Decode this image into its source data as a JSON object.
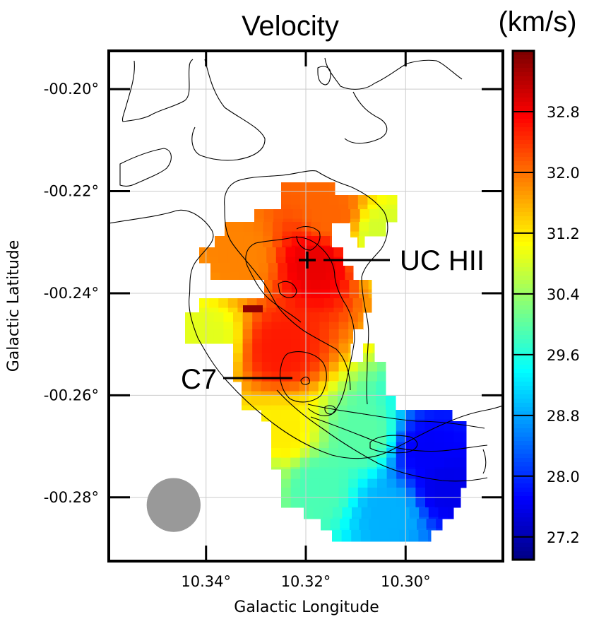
{
  "chart_data": {
    "type": "heatmap",
    "title": "Velocity",
    "colorbar_label": "(km/s)",
    "xlabel": "Galactic Longitude",
    "ylabel": "Galactic Latitude",
    "xlim": [
      10.3595,
      10.2805
    ],
    "ylim": [
      -0.2925,
      -0.1925
    ],
    "x_ticks": [
      10.34,
      10.32,
      10.3
    ],
    "x_tick_labels": [
      "10.34°",
      "10.32°",
      "10.30°"
    ],
    "y_ticks": [
      -0.2,
      -0.22,
      -0.24,
      -0.26,
      -0.28
    ],
    "y_tick_labels": [
      "-00.20°",
      "-00.22°",
      "-00.24°",
      "-00.26°",
      "-00.28°"
    ],
    "colorbar_range": [
      26.9,
      33.6
    ],
    "colorbar_ticks": [
      27.2,
      28.0,
      28.8,
      29.6,
      30.4,
      31.2,
      32.0,
      32.8
    ],
    "colorbar_tick_labels": [
      "27.2",
      "28.0",
      "28.8",
      "29.6",
      "30.4",
      "31.2",
      "32.0",
      "32.8"
    ],
    "colormap": "jet",
    "grid": true,
    "annotations": [
      {
        "text": "UC HII",
        "x": 10.321,
        "y": -0.2335,
        "marker": "cross"
      },
      {
        "text": "C7",
        "x": 10.3235,
        "y": -0.2565,
        "marker": "none"
      }
    ],
    "beam": {
      "x": 10.3465,
      "y": -0.2815,
      "diameter_deg": 0.0108,
      "color": "#999999"
    },
    "velocity_field": {
      "note_region": "pixels of ~0.0008 deg, irregular region",
      "model": [
        {
          "x": 10.318,
          "y": -0.234,
          "v": 32.9
        },
        {
          "x": 10.325,
          "y": -0.251,
          "v": 32.6
        },
        {
          "x": 10.315,
          "y": -0.225,
          "v": 32.1
        },
        {
          "x": 10.305,
          "y": -0.229,
          "v": 30.8
        },
        {
          "x": 10.333,
          "y": -0.233,
          "v": 31.9
        },
        {
          "x": 10.34,
          "y": -0.249,
          "v": 30.9
        },
        {
          "x": 10.325,
          "y": -0.268,
          "v": 31.2
        },
        {
          "x": 10.33,
          "y": -0.276,
          "v": 30.5
        },
        {
          "x": 10.318,
          "y": -0.278,
          "v": 29.9
        },
        {
          "x": 10.303,
          "y": -0.283,
          "v": 28.9
        },
        {
          "x": 10.296,
          "y": -0.271,
          "v": 27.7
        },
        {
          "x": 10.292,
          "y": -0.278,
          "v": 27.6
        },
        {
          "x": 10.308,
          "y": -0.268,
          "v": 30.0
        }
      ]
    },
    "contour_color": "#000000"
  }
}
